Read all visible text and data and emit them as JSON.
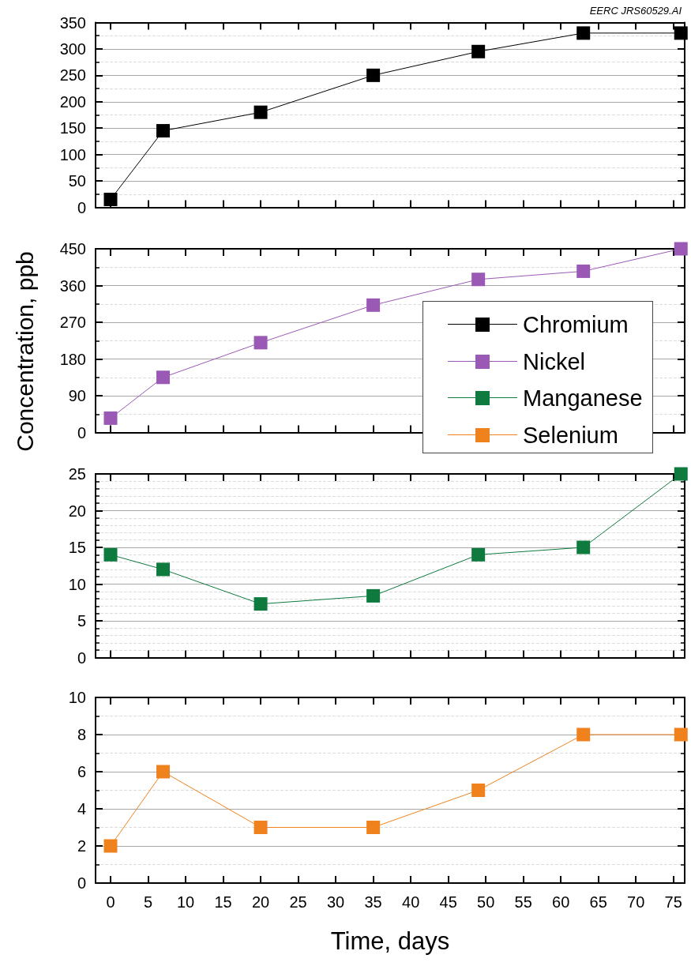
{
  "chart_data": [
    {
      "type": "line",
      "annotations": [
        "EERC JRS60529.AI"
      ],
      "x": [
        0,
        7,
        20,
        35,
        49,
        63,
        76
      ],
      "series": [
        {
          "name": "Chromium",
          "color": "#000000",
          "values": [
            15,
            145,
            180,
            250,
            295,
            330,
            330
          ]
        }
      ],
      "xlim": [
        -2,
        76.5
      ],
      "xticks": [
        0,
        5,
        10,
        15,
        20,
        25,
        30,
        35,
        40,
        45,
        50,
        55,
        60,
        65,
        70,
        75
      ],
      "ylim": [
        0,
        350
      ],
      "yticks": [
        0,
        50,
        100,
        150,
        200,
        250,
        300,
        350
      ],
      "grid": "y",
      "marker": "square",
      "tick_labels": "y",
      "legend": "right"
    },
    {
      "type": "line",
      "ylabel": "Concentration, ppb",
      "x": [
        0,
        7,
        20,
        35,
        49,
        63,
        76
      ],
      "series": [
        {
          "name": "Nickel",
          "color": "#9b59b6",
          "values": [
            35,
            135,
            220,
            312,
            375,
            395,
            450
          ]
        }
      ],
      "xlim": [
        -2,
        76.5
      ],
      "xticks": [
        0,
        5,
        10,
        15,
        20,
        25,
        30,
        35,
        40,
        45,
        50,
        55,
        60,
        65,
        70,
        75
      ],
      "ylim": [
        0,
        450
      ],
      "yticks": [
        0,
        90,
        180,
        270,
        360,
        450
      ],
      "grid": "y",
      "marker": "square",
      "tick_labels": "y",
      "legend": "right"
    },
    {
      "type": "line",
      "x": [
        0,
        7,
        20,
        35,
        49,
        63,
        76
      ],
      "series": [
        {
          "name": "Manganese",
          "color": "#0e7a3e",
          "values": [
            14,
            12,
            7.3,
            8.4,
            14,
            15,
            25
          ]
        }
      ],
      "xlim": [
        -2,
        76.5
      ],
      "xticks": [
        0,
        5,
        10,
        15,
        20,
        25,
        30,
        35,
        40,
        45,
        50,
        55,
        60,
        65,
        70,
        75
      ],
      "ylim": [
        0,
        25
      ],
      "yticks": [
        0,
        5,
        10,
        15,
        20,
        25
      ],
      "grid": "y",
      "marker": "square",
      "tick_labels": "y",
      "legend": "right"
    },
    {
      "type": "line",
      "xlabel": "Time, days",
      "x": [
        0,
        7,
        20,
        35,
        49,
        63,
        76
      ],
      "series": [
        {
          "name": "Selenium",
          "color": "#f0821e",
          "values": [
            2,
            6,
            3,
            3,
            5,
            8,
            8
          ]
        }
      ],
      "xlim": [
        -2,
        76.5
      ],
      "xticks": [
        0,
        5,
        10,
        15,
        20,
        25,
        30,
        35,
        40,
        45,
        50,
        55,
        60,
        65,
        70,
        75
      ],
      "ylim": [
        0,
        10
      ],
      "yticks": [
        0,
        2,
        4,
        6,
        8,
        10
      ],
      "grid": "y",
      "marker": "square",
      "legend": "right"
    }
  ]
}
